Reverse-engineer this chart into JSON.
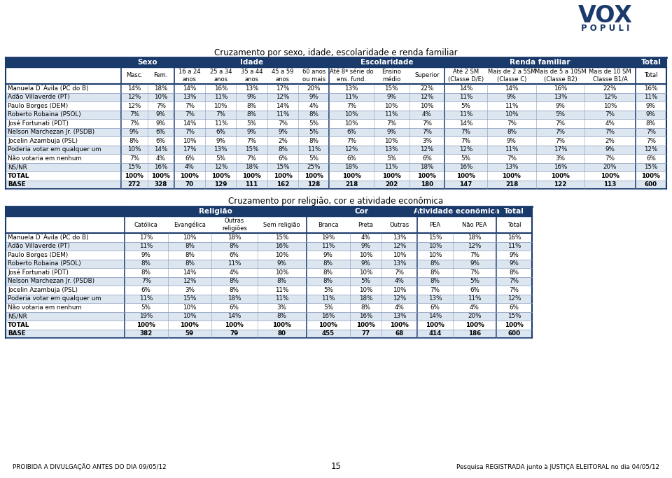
{
  "title1": "Cruzamento por sexo, idade, escolaridade e renda familiar",
  "title2": "Cruzamento por religião, cor e atividade econômica",
  "table1_subheaders": [
    "",
    "Masc.",
    "Fem.",
    "16 a 24\nanos",
    "25 a 34\nanos",
    "35 a 44\nanos",
    "45 a 59\nanos",
    "60 anos\nou mais",
    "Até 8ª série do\nens. fund.",
    "Ensino\nmédio",
    "Superior",
    "Até 2 SM\n(Classe D/E)",
    "Mais de 2 a 5SM\n(Classe C)",
    "Mais de 5 a 10SM\n(Classe B2)",
    "Mais de 10 SM\nClasse B1/A",
    "Total"
  ],
  "table1_rows": [
    {
      "label": "Manuela D´Ávila (PC do B)",
      "values": [
        "14%",
        "18%",
        "14%",
        "16%",
        "13%",
        "17%",
        "20%",
        "13%",
        "15%",
        "22%",
        "14%",
        "14%",
        "16%",
        "22%",
        "16%"
      ]
    },
    {
      "label": "Adão Villaverde (PT)",
      "values": [
        "12%",
        "10%",
        "13%",
        "11%",
        "9%",
        "12%",
        "9%",
        "11%",
        "9%",
        "12%",
        "11%",
        "9%",
        "13%",
        "12%",
        "11%"
      ]
    },
    {
      "label": "Paulo Borges (DEM)",
      "values": [
        "12%",
        "7%",
        "7%",
        "10%",
        "8%",
        "14%",
        "4%",
        "7%",
        "10%",
        "10%",
        "5%",
        "11%",
        "9%",
        "10%",
        "9%"
      ]
    },
    {
      "label": "Roberto Robaina (PSOL)",
      "values": [
        "7%",
        "9%",
        "7%",
        "7%",
        "8%",
        "11%",
        "8%",
        "10%",
        "11%",
        "4%",
        "11%",
        "10%",
        "5%",
        "7%",
        "9%"
      ]
    },
    {
      "label": "José Fortunati (PDT)",
      "values": [
        "7%",
        "9%",
        "14%",
        "11%",
        "5%",
        "7%",
        "5%",
        "10%",
        "7%",
        "7%",
        "14%",
        "7%",
        "7%",
        "4%",
        "8%"
      ]
    },
    {
      "label": "Nelson Marchezan Jr. (PSDB)",
      "values": [
        "9%",
        "6%",
        "7%",
        "6%",
        "9%",
        "9%",
        "5%",
        "6%",
        "9%",
        "7%",
        "7%",
        "8%",
        "7%",
        "7%",
        "7%"
      ]
    },
    {
      "label": "Jocelin Azambuja (PSL)",
      "values": [
        "8%",
        "6%",
        "10%",
        "9%",
        "7%",
        "2%",
        "8%",
        "7%",
        "10%",
        "3%",
        "7%",
        "9%",
        "7%",
        "2%",
        "7%"
      ]
    },
    {
      "label": "Poderia votar em qualquer um",
      "values": [
        "10%",
        "14%",
        "17%",
        "13%",
        "15%",
        "8%",
        "11%",
        "12%",
        "13%",
        "12%",
        "12%",
        "11%",
        "17%",
        "9%",
        "12%"
      ]
    },
    {
      "label": "Não votaria em nenhum",
      "values": [
        "7%",
        "4%",
        "6%",
        "5%",
        "7%",
        "6%",
        "5%",
        "6%",
        "5%",
        "6%",
        "5%",
        "7%",
        "3%",
        "7%",
        "6%"
      ]
    },
    {
      "label": "NS/NR",
      "values": [
        "15%",
        "16%",
        "4%",
        "12%",
        "18%",
        "15%",
        "25%",
        "18%",
        "11%",
        "18%",
        "16%",
        "13%",
        "16%",
        "20%",
        "15%"
      ]
    },
    {
      "label": "TOTAL",
      "values": [
        "100%",
        "100%",
        "100%",
        "100%",
        "100%",
        "100%",
        "100%",
        "100%",
        "100%",
        "100%",
        "100%",
        "100%",
        "100%",
        "100%",
        "100%"
      ]
    },
    {
      "label": "BASE",
      "values": [
        "272",
        "328",
        "70",
        "129",
        "111",
        "162",
        "128",
        "218",
        "202",
        "180",
        "147",
        "218",
        "122",
        "113",
        "600"
      ]
    }
  ],
  "table2_subheaders": [
    "",
    "Católica",
    "Evangélica",
    "Outras\nreligiões",
    "Sem religião",
    "Branca",
    "Preta",
    "Outras",
    "PEA",
    "Não PEA",
    "Total"
  ],
  "table2_rows": [
    {
      "label": "Manuela D´Ávila (PC do B)",
      "values": [
        "17%",
        "10%",
        "18%",
        "15%",
        "19%",
        "4%",
        "13%",
        "15%",
        "18%",
        "16%"
      ]
    },
    {
      "label": "Adão Villaverde (PT)",
      "values": [
        "11%",
        "8%",
        "8%",
        "16%",
        "11%",
        "9%",
        "12%",
        "10%",
        "12%",
        "11%"
      ]
    },
    {
      "label": "Paulo Borges (DEM)",
      "values": [
        "9%",
        "8%",
        "6%",
        "10%",
        "9%",
        "10%",
        "10%",
        "10%",
        "7%",
        "9%"
      ]
    },
    {
      "label": "Roberto Robaina (PSOL)",
      "values": [
        "8%",
        "8%",
        "11%",
        "9%",
        "8%",
        "9%",
        "13%",
        "8%",
        "9%",
        "9%"
      ]
    },
    {
      "label": "José Fortunati (PDT)",
      "values": [
        "8%",
        "14%",
        "4%",
        "10%",
        "8%",
        "10%",
        "7%",
        "8%",
        "7%",
        "8%"
      ]
    },
    {
      "label": "Nelson Marchezan Jr. (PSDB)",
      "values": [
        "7%",
        "12%",
        "8%",
        "8%",
        "8%",
        "5%",
        "4%",
        "8%",
        "5%",
        "7%"
      ]
    },
    {
      "label": "Jocelin Azambuja (PSL)",
      "values": [
        "6%",
        "3%",
        "8%",
        "11%",
        "5%",
        "10%",
        "10%",
        "7%",
        "6%",
        "7%"
      ]
    },
    {
      "label": "Poderia votar em qualquer um",
      "values": [
        "11%",
        "15%",
        "18%",
        "11%",
        "11%",
        "18%",
        "12%",
        "13%",
        "11%",
        "12%"
      ]
    },
    {
      "label": "Não votaria em nenhum",
      "values": [
        "5%",
        "10%",
        "6%",
        "3%",
        "5%",
        "8%",
        "4%",
        "6%",
        "4%",
        "6%"
      ]
    },
    {
      "label": "NS/NR",
      "values": [
        "19%",
        "10%",
        "14%",
        "8%",
        "16%",
        "16%",
        "13%",
        "14%",
        "20%",
        "15%"
      ]
    },
    {
      "label": "TOTAL",
      "values": [
        "100%",
        "100%",
        "100%",
        "100%",
        "100%",
        "100%",
        "100%",
        "100%",
        "100%",
        "100%"
      ]
    },
    {
      "label": "BASE",
      "values": [
        "382",
        "59",
        "79",
        "80",
        "455",
        "77",
        "68",
        "414",
        "186",
        "600"
      ]
    }
  ],
  "footer_left": "PROIBIDA A DIVULGAÇÃO ANTES DO DIA 09/05/12",
  "footer_right": "Pesquisa REGISTRADA junto à JUSTIÇA ELEITORAL no dia 04/05/12",
  "page_number": "15",
  "bg_color": "#ffffff",
  "header_bg": "#1a3a6b",
  "header_fg": "#ffffff",
  "border_color": "#1a3a6b",
  "text_color": "#000000",
  "bold_rows": [
    "TOTAL",
    "BASE"
  ],
  "t1_groups": [
    {
      "label": "Sexo",
      "c1": 1,
      "c2": 2
    },
    {
      "label": "Idade",
      "c1": 3,
      "c2": 7
    },
    {
      "label": "Escolaridade",
      "c1": 8,
      "c2": 10
    },
    {
      "label": "Renda familiar",
      "c1": 11,
      "c2": 14
    },
    {
      "label": "Total",
      "c1": 15,
      "c2": 15
    }
  ],
  "t2_groups": [
    {
      "label": "Religião",
      "c1": 1,
      "c2": 4
    },
    {
      "label": "Cor",
      "c1": 5,
      "c2": 7
    },
    {
      "label": "Atividade econômica",
      "c1": 8,
      "c2": 9
    },
    {
      "label": "Total",
      "c1": 10,
      "c2": 10
    }
  ],
  "col_widths_t1": [
    130,
    30,
    30,
    35,
    35,
    35,
    35,
    35,
    50,
    40,
    40,
    48,
    55,
    55,
    57,
    35
  ],
  "col_widths_t2": [
    150,
    55,
    55,
    58,
    62,
    55,
    40,
    45,
    45,
    55,
    45
  ],
  "t1_group_sep_cols": [
    1,
    3,
    8,
    11,
    15
  ],
  "t2_group_sep_cols": [
    1,
    5,
    8,
    10
  ]
}
